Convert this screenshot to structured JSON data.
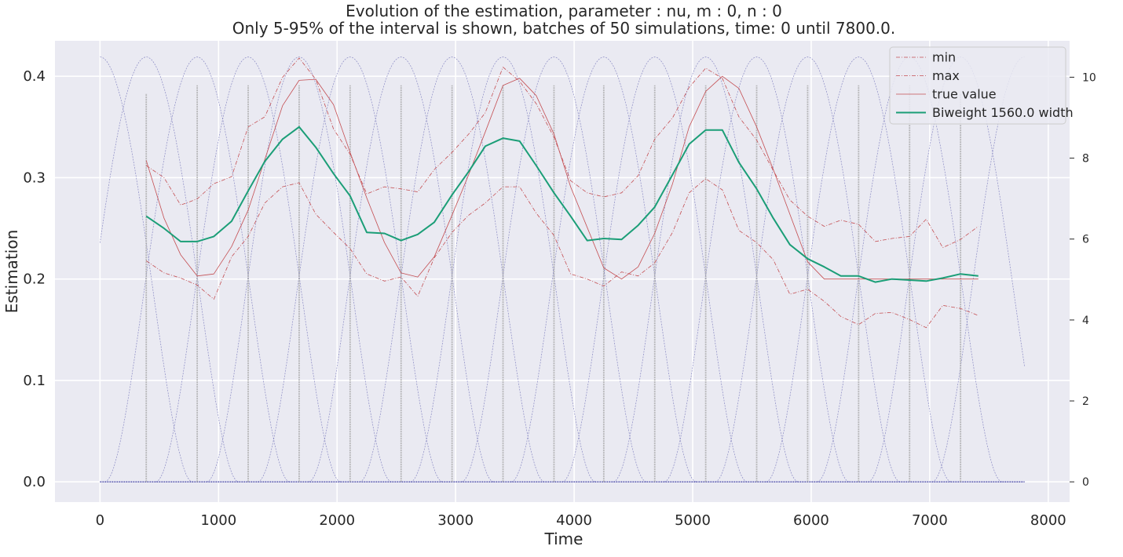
{
  "chart_data": {
    "type": "line",
    "title": [
      "Evolution of the estimation, parameter : nu, m : 0, n : 0",
      "Only 5-95% of the interval is shown, batches of 50 simulations, time: 0 until 7800.0."
    ],
    "xlabel": "Time",
    "ylabel": "Estimation",
    "xlim": [
      -380,
      8180
    ],
    "ylim": [
      -0.02,
      0.435
    ],
    "y2lim": [
      -0.5,
      10.9
    ],
    "xticks": [
      0,
      1000,
      2000,
      3000,
      4000,
      5000,
      6000,
      7000,
      8000
    ],
    "yticks": [
      0.0,
      0.1,
      0.2,
      0.3,
      0.4
    ],
    "y2ticks": [
      0,
      2,
      4,
      6,
      8,
      10
    ],
    "grid": true,
    "legend_position": "top-right",
    "colors": {
      "background": "#eaeaf2",
      "grid": "#ffffff",
      "bounds": "#c44e52",
      "true_value": "#c44e52",
      "estimate": "#1b9e77",
      "kernels": "#7f7fbf",
      "centers": "#a9a9a9"
    },
    "x": [
      390,
      540,
      680,
      820,
      960,
      1110,
      1250,
      1390,
      1540,
      1680,
      1820,
      1970,
      2110,
      2250,
      2400,
      2540,
      2680,
      2820,
      2970,
      3110,
      3250,
      3400,
      3540,
      3680,
      3830,
      3970,
      4110,
      4250,
      4400,
      4540,
      4680,
      4830,
      4970,
      5110,
      5250,
      5390,
      5540,
      5680,
      5820,
      5970,
      6110,
      6250,
      6400,
      6540,
      6680,
      6830,
      6970,
      7110,
      7260,
      7410
    ],
    "series": [
      {
        "name": "min",
        "style": "dash-dot",
        "values": [
          0.218,
          0.206,
          0.201,
          0.194,
          0.18,
          0.222,
          0.242,
          0.275,
          0.291,
          0.295,
          0.264,
          0.246,
          0.23,
          0.205,
          0.198,
          0.202,
          0.183,
          0.221,
          0.246,
          0.263,
          0.275,
          0.291,
          0.291,
          0.265,
          0.243,
          0.205,
          0.2,
          0.193,
          0.207,
          0.203,
          0.216,
          0.246,
          0.285,
          0.299,
          0.288,
          0.248,
          0.236,
          0.219,
          0.185,
          0.19,
          0.178,
          0.163,
          0.155,
          0.166,
          0.167,
          0.16,
          0.152,
          0.174,
          0.171,
          0.164
        ]
      },
      {
        "name": "max",
        "style": "dash-dot",
        "values": [
          0.312,
          0.3,
          0.273,
          0.279,
          0.294,
          0.301,
          0.35,
          0.36,
          0.399,
          0.418,
          0.397,
          0.348,
          0.323,
          0.284,
          0.291,
          0.289,
          0.286,
          0.308,
          0.325,
          0.343,
          0.364,
          0.409,
          0.395,
          0.373,
          0.34,
          0.297,
          0.285,
          0.281,
          0.285,
          0.302,
          0.338,
          0.359,
          0.389,
          0.408,
          0.398,
          0.36,
          0.337,
          0.307,
          0.278,
          0.262,
          0.252,
          0.258,
          0.254,
          0.237,
          0.24,
          0.242,
          0.259,
          0.231,
          0.239,
          0.252
        ]
      },
      {
        "name": "true value",
        "style": "solid-thin",
        "values": [
          0.317,
          0.26,
          0.224,
          0.203,
          0.205,
          0.232,
          0.268,
          0.318,
          0.371,
          0.396,
          0.397,
          0.372,
          0.325,
          0.28,
          0.236,
          0.206,
          0.202,
          0.222,
          0.263,
          0.303,
          0.345,
          0.391,
          0.398,
          0.381,
          0.343,
          0.291,
          0.251,
          0.211,
          0.2,
          0.212,
          0.245,
          0.294,
          0.35,
          0.385,
          0.4,
          0.388,
          0.35,
          0.308,
          0.264,
          0.217,
          0.2,
          0.2,
          0.2,
          0.2,
          0.2,
          0.2,
          0.2,
          0.2,
          0.2,
          0.2
        ]
      },
      {
        "name": "Biweight 1560.0 width",
        "style": "solid-thick",
        "values": [
          0.262,
          0.25,
          0.237,
          0.237,
          0.242,
          0.257,
          0.287,
          0.316,
          0.338,
          0.35,
          0.33,
          0.304,
          0.282,
          0.246,
          0.245,
          0.238,
          0.244,
          0.256,
          0.283,
          0.306,
          0.331,
          0.339,
          0.336,
          0.312,
          0.285,
          0.262,
          0.238,
          0.24,
          0.239,
          0.253,
          0.271,
          0.303,
          0.333,
          0.347,
          0.347,
          0.315,
          0.289,
          0.26,
          0.234,
          0.22,
          0.212,
          0.203,
          0.203,
          0.197,
          0.2,
          0.199,
          0.198,
          0.201,
          0.205,
          0.203
        ]
      }
    ],
    "kernels": {
      "axis": "right",
      "peak": 10.5,
      "half_width": 780,
      "centers": [
        0,
        390,
        820,
        1250,
        1680,
        2110,
        2540,
        2970,
        3400,
        3830,
        4250,
        4680,
        5110,
        5540,
        5970,
        6400,
        6830,
        7260,
        7800
      ]
    },
    "center_lines": {
      "axis": "right",
      "x": [
        390,
        820,
        1250,
        1680,
        2110,
        2540,
        2970,
        3400,
        3830,
        4250,
        4680,
        5110,
        5540,
        5970,
        6400,
        6830,
        7260
      ],
      "heights": [
        9.6,
        9.8,
        9.8,
        9.8,
        9.8,
        9.8,
        9.8,
        9.8,
        9.8,
        9.8,
        9.8,
        9.8,
        9.8,
        9.8,
        9.8,
        9.8,
        9.6
      ]
    }
  }
}
